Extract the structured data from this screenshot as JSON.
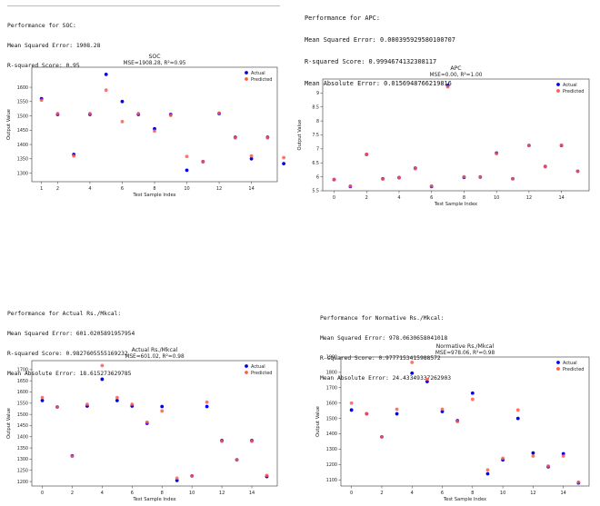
{
  "panels": [
    {
      "perf_lines": [
        "Performance for SOC:",
        "Mean Squared Error: 1908.28",
        "R-squared Score: 0.95"
      ]
    },
    {
      "perf_lines": [
        "Performance for APC:",
        "Mean Squared Error: 0.000395929580100707",
        "R-squared Score: 0.9994674132308117",
        "Mean Absolute Error: 0.0156948766219816"
      ]
    },
    {
      "perf_lines": [
        "Performance for Actual Rs./Mkcal:",
        "Mean Squared Error: 601.0205891957954",
        "R-squared Score: 0.9827605555169232",
        "Mean Absolute Error: 18.615273629785"
      ]
    },
    {
      "perf_lines": [
        "Performance for Normative Rs./Mkcal:",
        "Mean Squared Error: 978.0630658041018",
        "R-squared Score: 0.9777153415988572",
        "Mean Absolute Error: 24.43349337262903"
      ]
    }
  ],
  "colors": {
    "actual": "#0000ee",
    "predicted": "#ff5a4d"
  },
  "chart_data": [
    {
      "type": "scatter",
      "title": "SOC",
      "subtitle": "MSE=1908.28, R²=0.95",
      "xlabel": "Test Sample Index",
      "ylabel": "Output Value",
      "xlim": [
        0.4,
        15.6
      ],
      "ylim": [
        1270,
        1670
      ],
      "xticks": [
        1,
        2,
        4,
        6,
        8,
        10,
        12,
        14
      ],
      "yticks": [
        1300,
        1350,
        1400,
        1450,
        1500,
        1550,
        1600
      ],
      "legend": "top-right",
      "series": [
        {
          "name": "Actual",
          "x": [
            1,
            2,
            3,
            4,
            5,
            6,
            7,
            8,
            9,
            10,
            11,
            12,
            13,
            14,
            15,
            16
          ],
          "values": [
            1560,
            1505,
            1365,
            1505,
            1645,
            1550,
            1505,
            1455,
            1505,
            1310,
            1340,
            1508,
            1425,
            1350,
            1425,
            1333
          ]
        },
        {
          "name": "Predicted",
          "x": [
            1,
            2,
            3,
            4,
            5,
            6,
            7,
            8,
            9,
            10,
            11,
            12,
            13,
            14,
            15,
            16
          ],
          "values": [
            1555,
            1508,
            1360,
            1508,
            1590,
            1480,
            1508,
            1447,
            1502,
            1358,
            1340,
            1510,
            1423,
            1360,
            1423,
            1354
          ]
        }
      ]
    },
    {
      "type": "scatter",
      "title": "APC",
      "subtitle": "MSE=0.00, R²=1.00",
      "xlabel": "Test Sample Index",
      "ylabel": "Output Value",
      "xlim": [
        -0.7,
        15.7
      ],
      "ylim": [
        5.5,
        9.5
      ],
      "xticks": [
        0,
        2,
        4,
        6,
        8,
        10,
        12,
        14
      ],
      "yticks": [
        5.5,
        6.0,
        6.5,
        7.0,
        7.5,
        8.0,
        8.5,
        9.0
      ],
      "legend": "top-right",
      "series": [
        {
          "name": "Actual",
          "x": [
            0,
            1,
            2,
            3,
            4,
            5,
            6,
            7,
            8,
            9,
            10,
            11,
            12,
            13,
            14,
            15
          ],
          "values": [
            5.9,
            5.65,
            6.8,
            5.93,
            5.97,
            6.31,
            5.65,
            9.27,
            5.98,
            5.99,
            6.85,
            5.93,
            7.12,
            6.37,
            7.12,
            6.2
          ]
        },
        {
          "name": "Predicted",
          "x": [
            0,
            1,
            2,
            3,
            4,
            5,
            6,
            7,
            8,
            9,
            10,
            11,
            12,
            13,
            14,
            15
          ],
          "values": [
            5.9,
            5.67,
            6.81,
            5.92,
            5.98,
            6.29,
            5.67,
            9.22,
            6.0,
            6.0,
            6.83,
            5.93,
            7.12,
            6.36,
            7.13,
            6.2
          ]
        }
      ]
    },
    {
      "type": "scatter",
      "title": "Actual Rs./Mkcal",
      "subtitle": "MSE=601.02, R²=0.98",
      "xlabel": "Test Sample Index",
      "ylabel": "Output Value",
      "xlim": [
        -0.7,
        15.7
      ],
      "ylim": [
        1180,
        1740
      ],
      "xticks": [
        0,
        2,
        4,
        6,
        8,
        10,
        12,
        14
      ],
      "yticks": [
        1200,
        1250,
        1300,
        1350,
        1400,
        1450,
        1500,
        1550,
        1600,
        1650,
        1700
      ],
      "legend": "top-right",
      "series": [
        {
          "name": "Actual",
          "x": [
            0,
            1,
            2,
            3,
            4,
            5,
            6,
            7,
            8,
            9,
            10,
            11,
            12,
            13,
            14,
            15
          ],
          "values": [
            1562,
            1533,
            1315,
            1537,
            1657,
            1562,
            1537,
            1460,
            1535,
            1205,
            1225,
            1535,
            1383,
            1297,
            1383,
            1222
          ]
        },
        {
          "name": "Predicted",
          "x": [
            0,
            1,
            2,
            3,
            4,
            5,
            6,
            7,
            8,
            9,
            10,
            11,
            12,
            13,
            14,
            15
          ],
          "values": [
            1575,
            1533,
            1313,
            1545,
            1718,
            1575,
            1545,
            1465,
            1515,
            1215,
            1225,
            1555,
            1380,
            1297,
            1380,
            1227
          ]
        }
      ]
    },
    {
      "type": "scatter",
      "title": "Normative Rs./Mkcal",
      "subtitle": "MSE=978.06, R²=0.98",
      "xlabel": "Test Sample Index",
      "ylabel": "Output Value",
      "xlim": [
        -0.7,
        15.7
      ],
      "ylim": [
        1060,
        1900
      ],
      "xticks": [
        0,
        2,
        4,
        6,
        8,
        10,
        12,
        14
      ],
      "yticks": [
        1100,
        1200,
        1300,
        1400,
        1500,
        1600,
        1700,
        1800,
        1900
      ],
      "legend": "top-right",
      "series": [
        {
          "name": "Actual",
          "x": [
            0,
            1,
            2,
            3,
            4,
            5,
            6,
            7,
            8,
            9,
            10,
            11,
            12,
            13,
            14,
            15
          ],
          "values": [
            1555,
            1530,
            1380,
            1530,
            1795,
            1740,
            1545,
            1485,
            1665,
            1140,
            1230,
            1500,
            1275,
            1185,
            1270,
            1080
          ]
        },
        {
          "name": "Predicted",
          "x": [
            0,
            1,
            2,
            3,
            4,
            5,
            6,
            7,
            8,
            9,
            10,
            11,
            12,
            13,
            14,
            15
          ],
          "values": [
            1600,
            1530,
            1380,
            1560,
            1865,
            1755,
            1560,
            1480,
            1625,
            1165,
            1240,
            1555,
            1255,
            1190,
            1255,
            1085
          ]
        }
      ]
    }
  ]
}
